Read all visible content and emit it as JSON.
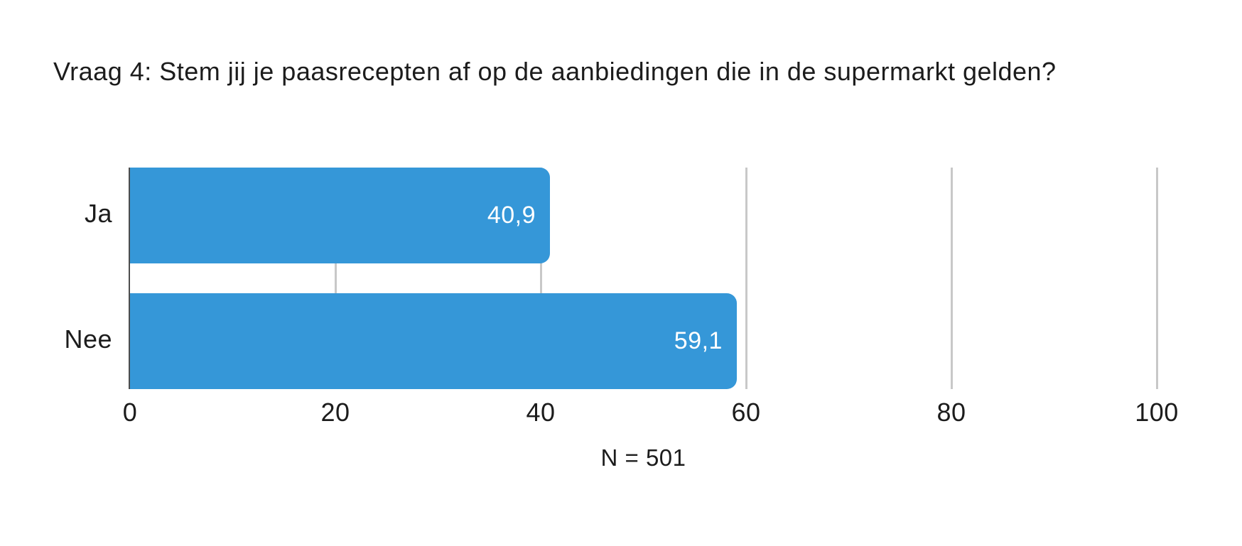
{
  "title": "Vraag 4: Stem jij je paasrecepten af op de aanbiedingen die in de supermarkt gelden?",
  "footnote": "N = 501",
  "colors": {
    "bar": "#3597d8",
    "gridline": "#c8c8c8",
    "axis_line": "#4d4d4d",
    "text": "#1c1c1c",
    "value_label": "#ffffff",
    "background": "#ffffff"
  },
  "chart_data": {
    "type": "bar",
    "orientation": "horizontal",
    "title": "Vraag 4: Stem jij je paasrecepten af op de aanbiedingen die in de supermarkt gelden?",
    "categories": [
      "Ja",
      "Nee"
    ],
    "values": [
      40.9,
      59.1
    ],
    "value_labels": [
      "40,9",
      "59,1"
    ],
    "xlabel": "",
    "ylabel": "",
    "xlim": [
      0,
      100
    ],
    "xticks": [
      0,
      20,
      40,
      60,
      80,
      100
    ],
    "grid": true,
    "legend_position": "none",
    "annotation": "N = 501"
  }
}
